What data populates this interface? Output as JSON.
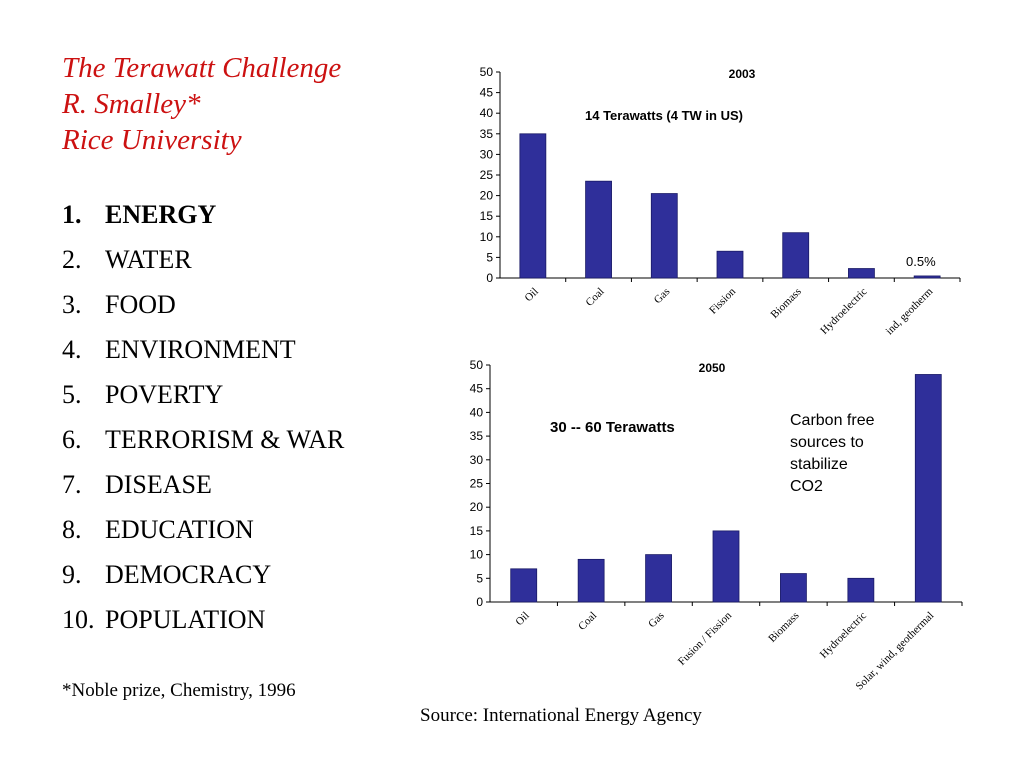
{
  "slide": {
    "title_lines": [
      "The Terawatt Challenge",
      "R. Smalley*",
      "Rice University"
    ],
    "list": [
      {
        "num": "1.",
        "label": "ENERGY",
        "bold": true
      },
      {
        "num": "2.",
        "label": "WATER"
      },
      {
        "num": "3.",
        "label": "FOOD"
      },
      {
        "num": "4.",
        "label": "ENVIRONMENT"
      },
      {
        "num": "5.",
        "label": "POVERTY"
      },
      {
        "num": "6.",
        "label": "TERRORISM & WAR"
      },
      {
        "num": "7.",
        "label": "DISEASE"
      },
      {
        "num": "8.",
        "label": "EDUCATION"
      },
      {
        "num": "9.",
        "label": "DEMOCRACY"
      },
      {
        "num": "10.",
        "label": "POPULATION"
      }
    ],
    "footnote": "*Noble prize, Chemistry, 1996",
    "source": "Source: International Energy Agency"
  },
  "chart_data": [
    {
      "type": "bar",
      "title": "2003",
      "subtitle": "14 Terawatts (4 TW in US)",
      "annotation": "0.5%",
      "categories": [
        "Oil",
        "Coal",
        "Gas",
        "Fission",
        "Biomass",
        "Hydroelectric",
        "ind, geotherm"
      ],
      "values": [
        35,
        23.5,
        20.5,
        6.5,
        11,
        2.3,
        0.5
      ],
      "ylim": [
        0,
        50
      ],
      "yticks": [
        0,
        5,
        10,
        15,
        20,
        25,
        30,
        35,
        40,
        45,
        50
      ],
      "bar_color": "#2f2f9a",
      "grid": false
    },
    {
      "type": "bar",
      "title": "2050",
      "subtitle": "30 -- 60 Terawatts",
      "annotation": "Carbon free sources to stabilize CO2",
      "categories": [
        "Oil",
        "Coal",
        "Gas",
        "Fusion / Fission",
        "Biomass",
        "Hydroelectric",
        "Solar, wind, geothermal"
      ],
      "values": [
        7,
        9,
        10,
        15,
        6,
        5,
        48
      ],
      "ylim": [
        0,
        50
      ],
      "yticks": [
        0,
        5,
        10,
        15,
        20,
        25,
        30,
        35,
        40,
        45,
        50
      ],
      "bar_color": "#2f2f9a",
      "grid": false
    }
  ]
}
